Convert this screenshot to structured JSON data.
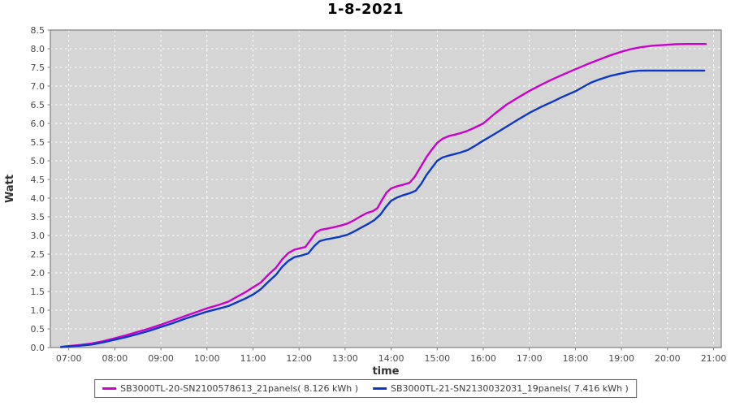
{
  "chart_data": {
    "type": "line",
    "title": "1-8-2021",
    "xlabel": "time",
    "ylabel": "Watt",
    "grid": "on",
    "legend_position": "bottom-center",
    "x_axis": {
      "domain_minutes": [
        396,
        1270
      ],
      "tick_minutes": [
        420,
        480,
        540,
        600,
        660,
        720,
        780,
        840,
        900,
        960,
        1020,
        1080,
        1140,
        1200,
        1260
      ],
      "tick_labels": [
        "07:00",
        "08:00",
        "09:00",
        "10:00",
        "11:00",
        "12:00",
        "13:00",
        "14:00",
        "15:00",
        "16:00",
        "17:00",
        "18:00",
        "19:00",
        "20:00",
        "21:00"
      ]
    },
    "y_axis": {
      "domain": [
        0,
        8.5
      ],
      "tick_values": [
        0.0,
        0.5,
        1.0,
        1.5,
        2.0,
        2.5,
        3.0,
        3.5,
        4.0,
        4.5,
        5.0,
        5.5,
        6.0,
        6.5,
        7.0,
        7.5,
        8.0,
        8.5
      ],
      "tick_labels": [
        "0.0",
        "0.5",
        "1.0",
        "1.5",
        "2.0",
        "2.5",
        "3.0",
        "3.5",
        "4.0",
        "4.5",
        "5.0",
        "5.5",
        "6.0",
        "6.5",
        "7.0",
        "7.5",
        "8.0",
        "8.5"
      ]
    },
    "series": [
      {
        "label": "SB3000TL-20-SN2100578613_21panels( 8.126 kWh )",
        "color": "#cc00cc",
        "total_kwh": 8.126,
        "points": [
          [
            410,
            0.02
          ],
          [
            420,
            0.04
          ],
          [
            435,
            0.07
          ],
          [
            450,
            0.11
          ],
          [
            465,
            0.17
          ],
          [
            480,
            0.25
          ],
          [
            495,
            0.33
          ],
          [
            510,
            0.42
          ],
          [
            525,
            0.51
          ],
          [
            540,
            0.61
          ],
          [
            555,
            0.72
          ],
          [
            570,
            0.83
          ],
          [
            585,
            0.94
          ],
          [
            600,
            1.05
          ],
          [
            615,
            1.14
          ],
          [
            628,
            1.23
          ],
          [
            640,
            1.37
          ],
          [
            650,
            1.48
          ],
          [
            660,
            1.61
          ],
          [
            670,
            1.74
          ],
          [
            680,
            1.95
          ],
          [
            690,
            2.14
          ],
          [
            698,
            2.36
          ],
          [
            706,
            2.53
          ],
          [
            714,
            2.62
          ],
          [
            722,
            2.66
          ],
          [
            728,
            2.69
          ],
          [
            735,
            2.88
          ],
          [
            742,
            3.08
          ],
          [
            748,
            3.15
          ],
          [
            756,
            3.18
          ],
          [
            765,
            3.22
          ],
          [
            775,
            3.27
          ],
          [
            783,
            3.32
          ],
          [
            790,
            3.39
          ],
          [
            800,
            3.51
          ],
          [
            808,
            3.6
          ],
          [
            816,
            3.65
          ],
          [
            822,
            3.73
          ],
          [
            828,
            3.95
          ],
          [
            834,
            4.15
          ],
          [
            840,
            4.26
          ],
          [
            848,
            4.32
          ],
          [
            856,
            4.36
          ],
          [
            864,
            4.41
          ],
          [
            871,
            4.58
          ],
          [
            878,
            4.82
          ],
          [
            886,
            5.1
          ],
          [
            893,
            5.3
          ],
          [
            900,
            5.48
          ],
          [
            907,
            5.59
          ],
          [
            915,
            5.66
          ],
          [
            923,
            5.7
          ],
          [
            930,
            5.74
          ],
          [
            938,
            5.79
          ],
          [
            947,
            5.87
          ],
          [
            960,
            6.0
          ],
          [
            975,
            6.26
          ],
          [
            990,
            6.5
          ],
          [
            1005,
            6.69
          ],
          [
            1020,
            6.87
          ],
          [
            1035,
            7.03
          ],
          [
            1050,
            7.18
          ],
          [
            1065,
            7.32
          ],
          [
            1080,
            7.45
          ],
          [
            1095,
            7.58
          ],
          [
            1110,
            7.7
          ],
          [
            1125,
            7.82
          ],
          [
            1140,
            7.92
          ],
          [
            1152,
            7.99
          ],
          [
            1165,
            8.04
          ],
          [
            1180,
            8.08
          ],
          [
            1195,
            8.1
          ],
          [
            1210,
            8.12
          ],
          [
            1225,
            8.125
          ],
          [
            1250,
            8.126
          ]
        ]
      },
      {
        "label": "SB3000TL-21-SN2130032031_19panels( 7.416 kWh )",
        "color": "#0c38c8",
        "total_kwh": 7.416,
        "points": [
          [
            410,
            0.01
          ],
          [
            420,
            0.03
          ],
          [
            435,
            0.05
          ],
          [
            450,
            0.08
          ],
          [
            465,
            0.14
          ],
          [
            480,
            0.21
          ],
          [
            495,
            0.28
          ],
          [
            510,
            0.36
          ],
          [
            525,
            0.45
          ],
          [
            540,
            0.55
          ],
          [
            555,
            0.65
          ],
          [
            570,
            0.76
          ],
          [
            585,
            0.86
          ],
          [
            600,
            0.96
          ],
          [
            615,
            1.04
          ],
          [
            628,
            1.11
          ],
          [
            640,
            1.22
          ],
          [
            650,
            1.31
          ],
          [
            660,
            1.42
          ],
          [
            670,
            1.56
          ],
          [
            680,
            1.76
          ],
          [
            690,
            1.95
          ],
          [
            698,
            2.16
          ],
          [
            706,
            2.32
          ],
          [
            714,
            2.42
          ],
          [
            724,
            2.47
          ],
          [
            732,
            2.52
          ],
          [
            740,
            2.72
          ],
          [
            747,
            2.85
          ],
          [
            754,
            2.89
          ],
          [
            762,
            2.92
          ],
          [
            772,
            2.96
          ],
          [
            783,
            3.02
          ],
          [
            790,
            3.09
          ],
          [
            800,
            3.2
          ],
          [
            810,
            3.31
          ],
          [
            818,
            3.41
          ],
          [
            826,
            3.56
          ],
          [
            833,
            3.76
          ],
          [
            840,
            3.93
          ],
          [
            848,
            4.02
          ],
          [
            856,
            4.08
          ],
          [
            864,
            4.13
          ],
          [
            872,
            4.2
          ],
          [
            879,
            4.38
          ],
          [
            886,
            4.62
          ],
          [
            893,
            4.81
          ],
          [
            900,
            5.0
          ],
          [
            907,
            5.09
          ],
          [
            915,
            5.14
          ],
          [
            923,
            5.18
          ],
          [
            930,
            5.22
          ],
          [
            940,
            5.29
          ],
          [
            950,
            5.41
          ],
          [
            960,
            5.54
          ],
          [
            975,
            5.72
          ],
          [
            990,
            5.91
          ],
          [
            1005,
            6.1
          ],
          [
            1020,
            6.28
          ],
          [
            1035,
            6.44
          ],
          [
            1050,
            6.58
          ],
          [
            1062,
            6.7
          ],
          [
            1080,
            6.86
          ],
          [
            1092,
            7.0
          ],
          [
            1100,
            7.09
          ],
          [
            1110,
            7.17
          ],
          [
            1125,
            7.27
          ],
          [
            1140,
            7.34
          ],
          [
            1152,
            7.39
          ],
          [
            1163,
            7.41
          ],
          [
            1175,
            7.415
          ],
          [
            1190,
            7.416
          ],
          [
            1210,
            7.416
          ],
          [
            1230,
            7.416
          ],
          [
            1248,
            7.416
          ]
        ]
      }
    ],
    "colors": {
      "plot_background": "#d5d5d5",
      "plot_border": "#7f7f7f",
      "gridline": "#ffffff",
      "tick_label": "#4a4a4a",
      "axis_label": "#333333",
      "title": "#000000",
      "legend_border": "#666666"
    }
  }
}
